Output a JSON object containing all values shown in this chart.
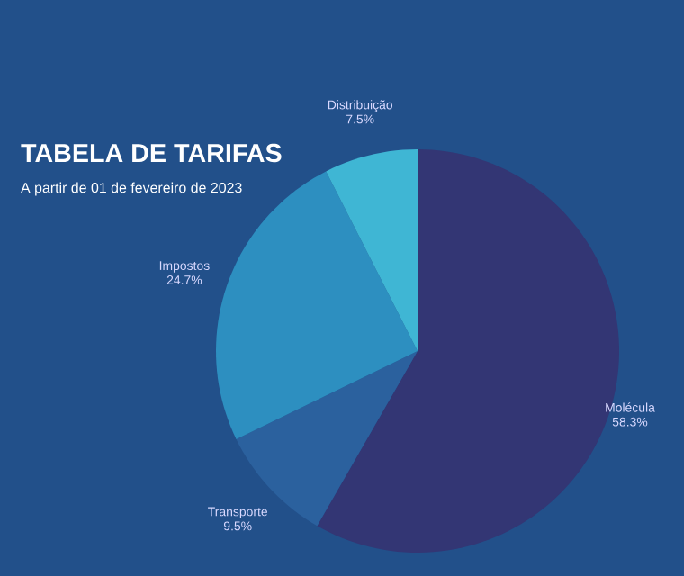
{
  "chart_data": {
    "type": "pie",
    "title": "TABELA DE TARIFAS",
    "subtitle": "A partir de 01 de fevereiro de 2023",
    "categories": [
      "Molécula",
      "Transporte",
      "Impostos",
      "Distribuição"
    ],
    "values": [
      58.3,
      9.5,
      24.7,
      7.5
    ],
    "colors": [
      "#333674",
      "#2b619e",
      "#2d8fc0",
      "#3fb6d4"
    ],
    "value_labels": [
      "58.3%",
      "9.5%",
      "24.7%",
      "7.5%"
    ]
  }
}
